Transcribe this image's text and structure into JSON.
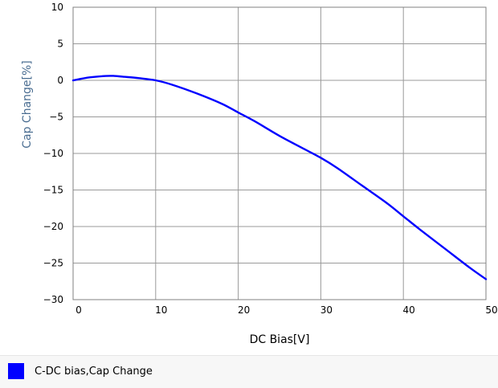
{
  "chart_data": {
    "type": "line",
    "xlabel": "DC Bias[V]",
    "ylabel": "Cap Change[%]",
    "xlim": [
      0,
      50
    ],
    "ylim": [
      -30,
      10
    ],
    "x_ticks": [
      0,
      10,
      20,
      30,
      40,
      50
    ],
    "y_ticks": [
      10,
      5,
      0,
      -5,
      -10,
      -15,
      -20,
      -25,
      -30
    ],
    "grid": true,
    "legend_placement": "bottom",
    "series": [
      {
        "name": "C-DC bias,Cap Change",
        "color": "#0000ff",
        "x": [
          0,
          2,
          4,
          5,
          6,
          8,
          10,
          12,
          15,
          18,
          20,
          22,
          25,
          28,
          30,
          32,
          35,
          38,
          40,
          42,
          45,
          48,
          50
        ],
        "y": [
          0,
          0.4,
          0.6,
          0.6,
          0.5,
          0.3,
          0,
          -0.6,
          -1.8,
          -3.2,
          -4.4,
          -5.6,
          -7.6,
          -9.4,
          -10.6,
          -12.0,
          -14.4,
          -16.8,
          -18.6,
          -20.4,
          -23.0,
          -25.6,
          -27.2
        ]
      }
    ]
  },
  "legend": {
    "label": "C-DC bias,Cap Change",
    "color": "#0000ff"
  }
}
